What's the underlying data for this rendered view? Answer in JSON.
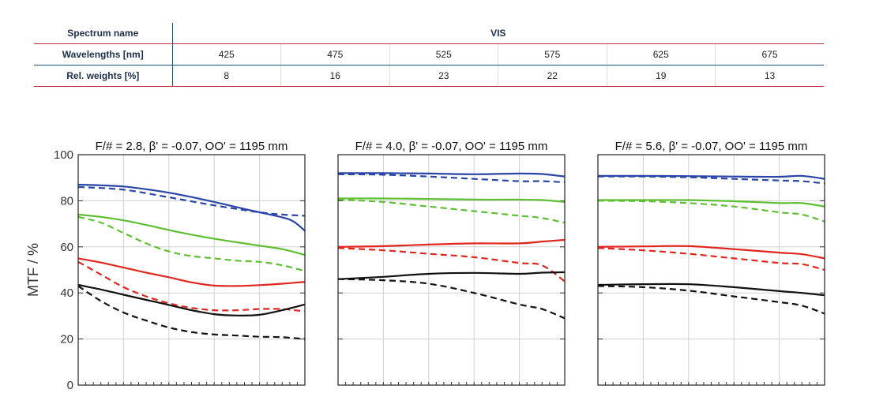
{
  "table": {
    "rows": [
      {
        "label": "Spectrum name",
        "values": [
          "VIS"
        ]
      },
      {
        "label": "Wavelengths [nm]",
        "values": [
          "425",
          "475",
          "525",
          "575",
          "625",
          "675"
        ]
      },
      {
        "label": "Rel. weights [%]",
        "values": [
          "8",
          "16",
          "23",
          "22",
          "19",
          "13"
        ]
      }
    ]
  },
  "chart_data": {
    "type": "line",
    "ylabel": "MTF / %",
    "ylim": [
      0,
      100
    ],
    "y_ticks": [
      0,
      20,
      40,
      60,
      80,
      100
    ],
    "grid": true,
    "x_normalized": true,
    "colors": {
      "blue": "#2a45a8",
      "green": "#5fbf33",
      "red": "#e0261e",
      "black": "#111111"
    },
    "panels": [
      {
        "title": "F/# = 2.8, β' = -0.07, OO' = 1195 mm",
        "series": [
          {
            "color": "blue",
            "style": "solid",
            "x": [
              0,
              0.1,
              0.2,
              0.3,
              0.4,
              0.5,
              0.6,
              0.7,
              0.8,
              0.9,
              0.95,
              1
            ],
            "y": [
              87,
              86.7,
              86.2,
              85,
              83.5,
              81.6,
              79.5,
              77.2,
              75,
              72.8,
              71,
              67
            ]
          },
          {
            "color": "blue",
            "style": "dash",
            "x": [
              0,
              0.2,
              0.4,
              0.6,
              0.8,
              0.9,
              1
            ],
            "y": [
              86,
              84.8,
              81.5,
              78,
              75,
              74,
              73.5
            ]
          },
          {
            "color": "green",
            "style": "solid",
            "x": [
              0,
              0.1,
              0.2,
              0.3,
              0.4,
              0.5,
              0.6,
              0.7,
              0.8,
              0.9,
              1
            ],
            "y": [
              74,
              73,
              71.5,
              69.5,
              67.3,
              65.3,
              63.5,
              62,
              60.5,
              59,
              56.5
            ]
          },
          {
            "color": "green",
            "style": "dash",
            "x": [
              0,
              0.1,
              0.2,
              0.3,
              0.4,
              0.5,
              0.6,
              0.7,
              0.8,
              0.9,
              1
            ],
            "y": [
              73,
              70.5,
              66,
              61.5,
              58,
              56,
              55,
              54,
              53.5,
              52,
              49.5
            ]
          },
          {
            "color": "red",
            "style": "solid",
            "x": [
              0,
              0.1,
              0.2,
              0.3,
              0.4,
              0.5,
              0.6,
              0.7,
              0.8,
              0.9,
              1
            ],
            "y": [
              55,
              53.2,
              51,
              48.8,
              46.8,
              44.6,
              43.2,
              43,
              43.4,
              44,
              44.8
            ]
          },
          {
            "color": "red",
            "style": "dash",
            "x": [
              0,
              0.1,
              0.2,
              0.3,
              0.4,
              0.5,
              0.6,
              0.7,
              0.8,
              0.9,
              1
            ],
            "y": [
              53.5,
              48,
              42.5,
              38.5,
              35.5,
              33.5,
              32.5,
              32.5,
              33,
              33,
              32
            ]
          },
          {
            "color": "black",
            "style": "solid",
            "x": [
              0,
              0.1,
              0.2,
              0.3,
              0.4,
              0.5,
              0.6,
              0.7,
              0.8,
              0.9,
              1
            ],
            "y": [
              43.5,
              41.5,
              39.2,
              37,
              34.8,
              32.5,
              30.8,
              30.2,
              30.5,
              32.5,
              35
            ]
          },
          {
            "color": "black",
            "style": "dash",
            "x": [
              0,
              0.1,
              0.2,
              0.3,
              0.4,
              0.5,
              0.6,
              0.7,
              0.8,
              0.9,
              1
            ],
            "y": [
              43,
              36.5,
              31.5,
              28,
              25,
              23,
              22,
              21.5,
              21,
              20.8,
              20
            ]
          }
        ]
      },
      {
        "title": "F/# = 4.0, β' = -0.07, OO' = 1195 mm",
        "series": [
          {
            "color": "blue",
            "style": "solid",
            "x": [
              0,
              0.2,
              0.4,
              0.6,
              0.8,
              0.9,
              1
            ],
            "y": [
              92,
              92,
              91.8,
              91.5,
              91.8,
              91.6,
              90.5
            ]
          },
          {
            "color": "blue",
            "style": "dash",
            "x": [
              0,
              0.2,
              0.4,
              0.6,
              0.8,
              0.9,
              1
            ],
            "y": [
              91.5,
              91.3,
              90.5,
              89.5,
              88.5,
              88.5,
              88
            ]
          },
          {
            "color": "green",
            "style": "solid",
            "x": [
              0,
              0.2,
              0.4,
              0.6,
              0.8,
              0.9,
              1
            ],
            "y": [
              81,
              81,
              80.8,
              80.5,
              80.5,
              80.3,
              79.5
            ]
          },
          {
            "color": "green",
            "style": "dash",
            "x": [
              0,
              0.2,
              0.4,
              0.6,
              0.8,
              0.9,
              1
            ],
            "y": [
              80.5,
              79.5,
              77.5,
              75.5,
              73.5,
              72.5,
              70.5
            ]
          },
          {
            "color": "red",
            "style": "solid",
            "x": [
              0,
              0.2,
              0.4,
              0.6,
              0.8,
              0.9,
              1
            ],
            "y": [
              60,
              60.3,
              61,
              61.5,
              61.5,
              62.3,
              63
            ]
          },
          {
            "color": "red",
            "style": "dash",
            "x": [
              0,
              0.2,
              0.4,
              0.6,
              0.8,
              0.9,
              1
            ],
            "y": [
              59.5,
              58.5,
              57,
              55.5,
              53,
              52,
              45
            ]
          },
          {
            "color": "black",
            "style": "solid",
            "x": [
              0,
              0.2,
              0.4,
              0.6,
              0.8,
              0.9,
              1
            ],
            "y": [
              46,
              47,
              48.3,
              48.7,
              48.3,
              48.8,
              49
            ]
          },
          {
            "color": "black",
            "style": "dash",
            "x": [
              0,
              0.2,
              0.4,
              0.6,
              0.8,
              0.9,
              1
            ],
            "y": [
              46,
              45.5,
              44,
              40,
              35,
              33,
              29
            ]
          }
        ]
      },
      {
        "title": "F/# = 5.6, β' = -0.07, OO' = 1195 mm",
        "series": [
          {
            "color": "blue",
            "style": "solid",
            "x": [
              0,
              0.2,
              0.4,
              0.6,
              0.8,
              0.9,
              1
            ],
            "y": [
              90.8,
              90.8,
              90.7,
              90.5,
              90.4,
              90.8,
              89.5
            ]
          },
          {
            "color": "blue",
            "style": "dash",
            "x": [
              0,
              0.2,
              0.4,
              0.6,
              0.8,
              0.9,
              1
            ],
            "y": [
              90.5,
              90.5,
              90.2,
              89.5,
              88.8,
              88.5,
              87.5
            ]
          },
          {
            "color": "green",
            "style": "solid",
            "x": [
              0,
              0.2,
              0.4,
              0.6,
              0.8,
              0.9,
              1
            ],
            "y": [
              80.3,
              80.3,
              80.3,
              79.8,
              79,
              79,
              77.5
            ]
          },
          {
            "color": "green",
            "style": "dash",
            "x": [
              0,
              0.2,
              0.4,
              0.6,
              0.8,
              0.9,
              1
            ],
            "y": [
              80,
              79.8,
              79,
              77.5,
              75,
              74,
              71
            ]
          },
          {
            "color": "red",
            "style": "solid",
            "x": [
              0,
              0.2,
              0.4,
              0.6,
              0.8,
              0.9,
              1
            ],
            "y": [
              60,
              60.2,
              60.3,
              59,
              57.5,
              56.8,
              55
            ]
          },
          {
            "color": "red",
            "style": "dash",
            "x": [
              0,
              0.2,
              0.4,
              0.6,
              0.8,
              0.9,
              1
            ],
            "y": [
              59.5,
              58.5,
              57,
              55,
              53,
              52.5,
              50
            ]
          },
          {
            "color": "black",
            "style": "solid",
            "x": [
              0,
              0.2,
              0.4,
              0.6,
              0.8,
              0.9,
              1
            ],
            "y": [
              43.5,
              43.8,
              43.8,
              42.5,
              40.8,
              40,
              39
            ]
          },
          {
            "color": "black",
            "style": "dash",
            "x": [
              0,
              0.2,
              0.4,
              0.6,
              0.8,
              0.9,
              1
            ],
            "y": [
              43,
              42.5,
              41,
              38.5,
              36,
              34.5,
              31
            ]
          }
        ]
      }
    ]
  }
}
